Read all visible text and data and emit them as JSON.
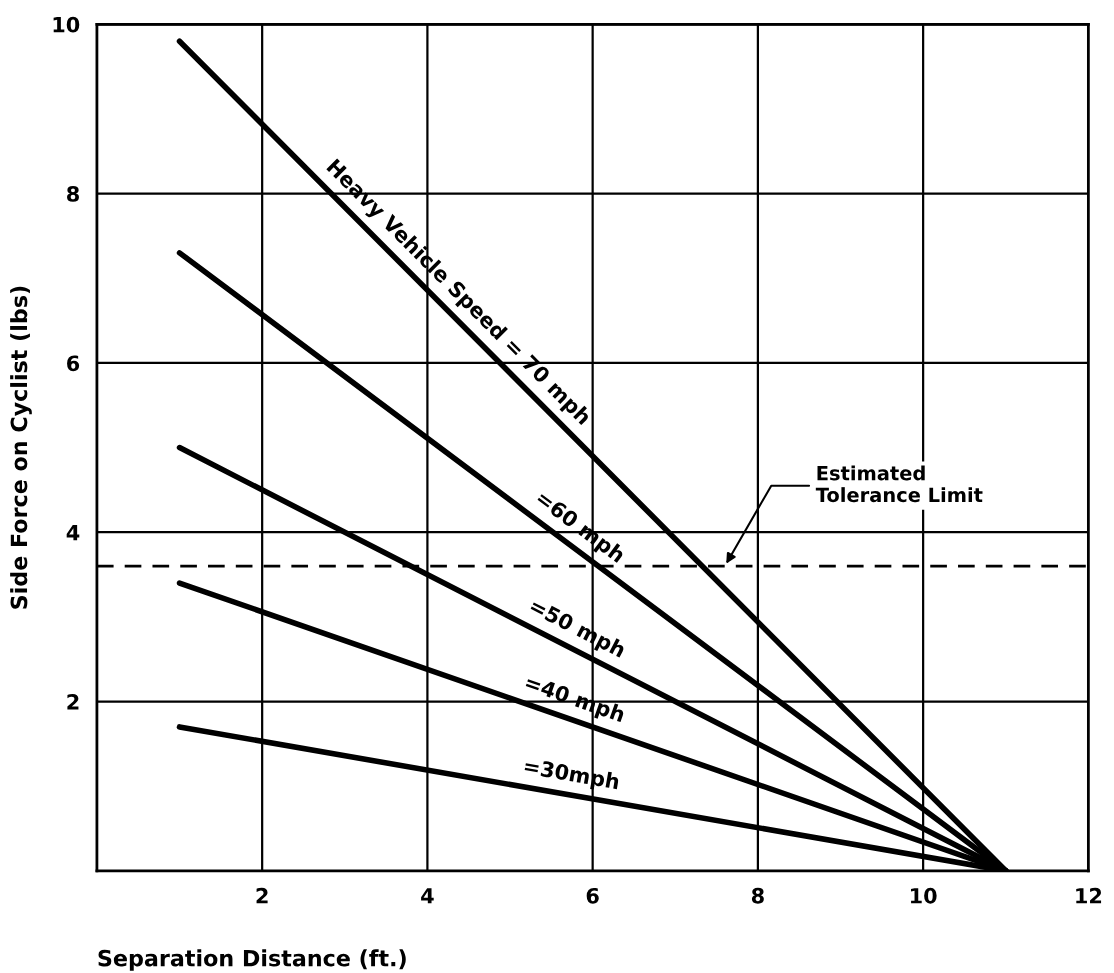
{
  "chart_data": {
    "type": "line",
    "xlabel": "Separation Distance (ft.)",
    "ylabel": "Side Force on Cyclist (lbs)",
    "xlim": [
      0,
      12
    ],
    "ylim": [
      0,
      10
    ],
    "xticks": [
      2,
      4,
      6,
      8,
      10,
      12
    ],
    "yticks": [
      2,
      4,
      6,
      8,
      10
    ],
    "grid": true,
    "marker": "none",
    "line_style": "solid",
    "x": [
      1,
      11
    ],
    "series": [
      {
        "name": "Heavy Vehicle Speed = 70 mph",
        "color": "#000000",
        "values": [
          9.8,
          0
        ]
      },
      {
        "name": "=60 mph",
        "color": "#000000",
        "values": [
          7.3,
          0
        ]
      },
      {
        "name": "=50 mph",
        "color": "#000000",
        "values": [
          5.0,
          0
        ]
      },
      {
        "name": "=40 mph",
        "color": "#000000",
        "values": [
          3.4,
          0
        ]
      },
      {
        "name": "=30mph",
        "color": "#000000",
        "values": [
          1.7,
          0
        ]
      }
    ],
    "ref_lines": [
      {
        "axis": "y",
        "value": 3.6,
        "label": "Estimated\nTolerance Limit",
        "color": "#000000",
        "line_style": "dashed"
      }
    ]
  }
}
